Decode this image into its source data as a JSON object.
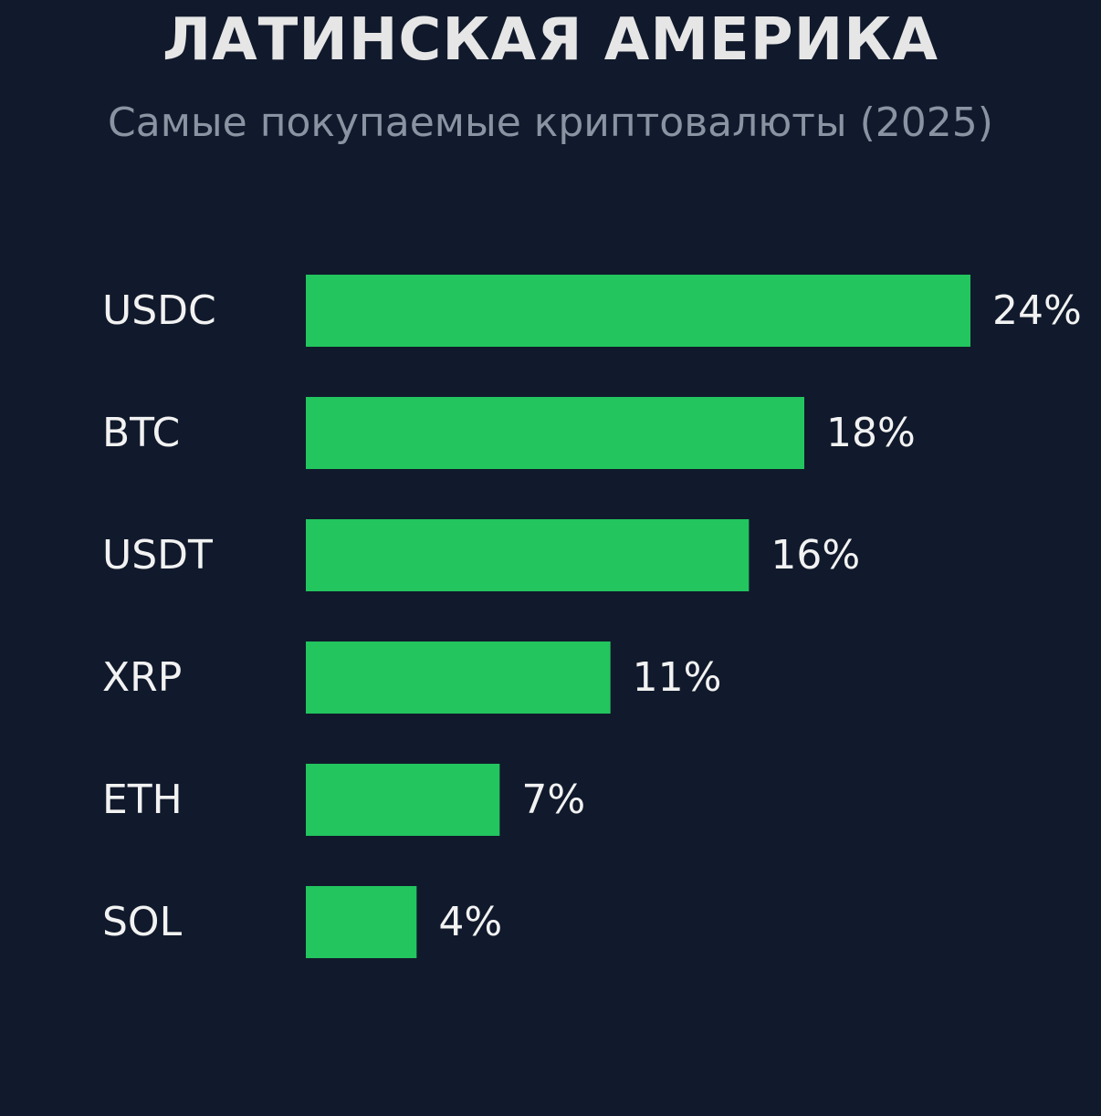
{
  "title": "ЛАТИНСКАЯ АМЕРИКА",
  "subtitle": "Самые покупаемые криптовалюты (2025)",
  "colors": {
    "background": "#111a2c",
    "bar": "#22c55e",
    "label_text": "#f2f2f2",
    "title_text": "#e6e6e6",
    "subtitle_text": "#8a93a2"
  },
  "chart_data": {
    "type": "bar",
    "orientation": "horizontal",
    "categories": [
      "USDC",
      "BTC",
      "USDT",
      "XRP",
      "ETH",
      "SOL"
    ],
    "values": [
      24,
      18,
      16,
      11,
      7,
      4
    ],
    "value_labels": [
      "24%",
      "18%",
      "16%",
      "11%",
      "7%",
      "4%"
    ],
    "unit": "%",
    "title": "ЛАТИНСКАЯ АМЕРИКА",
    "subtitle": "Самые покупаемые криптовалюты (2025)",
    "xlim": [
      0,
      24
    ],
    "grid": false,
    "legend": "none"
  }
}
